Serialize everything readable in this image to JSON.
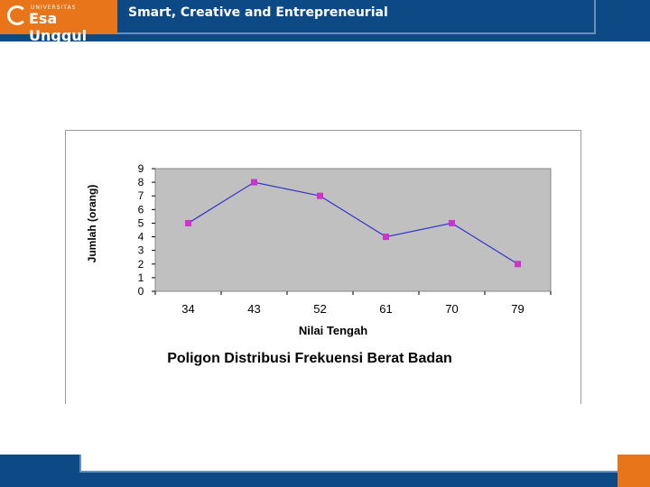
{
  "header": {
    "logo_small": "UNIVERSITAS",
    "logo_text": "Esa Unggul",
    "tagline": "Smart, Creative and Entrepreneurial"
  },
  "colors": {
    "header_bg": "#0d4a85",
    "accent": "#e8751a",
    "plot_bg": "#c0c0c0",
    "line": "#3333cc",
    "marker": "#cc33cc"
  },
  "chart_data": {
    "type": "line",
    "categories": [
      "34",
      "43",
      "52",
      "61",
      "70",
      "79"
    ],
    "values": [
      5,
      8,
      7,
      4,
      5,
      2
    ],
    "title": "Poligon Distribusi Frekuensi Berat Badan",
    "xlabel": "Nilai Tengah",
    "ylabel": "Jumlah (orang)",
    "ylim": [
      0,
      9
    ],
    "yticks": [
      "0",
      "1",
      "2",
      "3",
      "4",
      "5",
      "6",
      "7",
      "8",
      "9"
    ],
    "grid": false,
    "legend": "none"
  }
}
